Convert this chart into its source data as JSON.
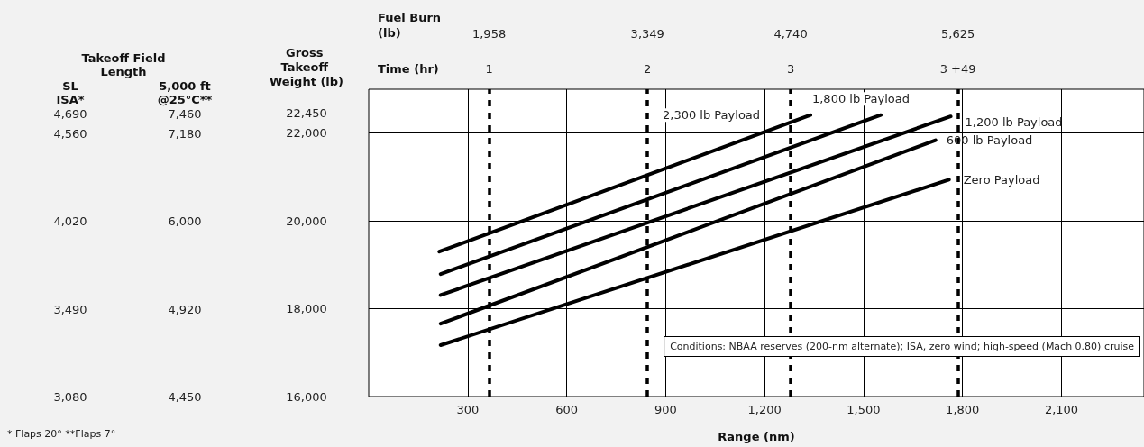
{
  "chart_data": [
    {
      "type": "other",
      "annotations": [
        "Takeoff Field Length",
        "SL ISA*",
        "5,000 ft @25°C**",
        "4,690",
        "7,460",
        "4,560",
        "7,180",
        "4,020",
        "6,000",
        "3,490",
        "4,920",
        "3,080",
        "4,450",
        "* Flaps 20°   **Flaps 7°"
      ]
    },
    {
      "type": "line",
      "xlabel": "Range (nm)",
      "ylabel": "Gross Takeoff Weight (lb)",
      "annotations": [
        "Fuel Burn (lb)",
        "1,958",
        "3,349",
        "4,740",
        "5,625",
        "Time (hr)",
        "1",
        "2",
        "3",
        "3 +49",
        "Conditions: NBAA reserves (200-nm alternate); ISA, zero wind; high-speed (Mach 0.80) cruise"
      ],
      "xlim": [
        0,
        2350
      ],
      "xticks": [
        300,
        600,
        900,
        {
          "value": 1200,
          "label": "1,200"
        },
        {
          "value": 1500,
          "label": "1,500"
        },
        {
          "value": 1800,
          "label": "1,800"
        },
        {
          "value": 2100,
          "label": "2,100"
        }
      ],
      "ylim": [
        16000,
        23000
      ],
      "yticks": [
        {
          "value": 16000,
          "label": "16,000"
        },
        {
          "value": 18000,
          "label": "18,000"
        },
        {
          "value": 20000,
          "label": "20,000"
        },
        {
          "value": 22000,
          "label": "22,000"
        },
        {
          "value": 22450,
          "label": "22,450"
        }
      ],
      "ref_lines": [
        {
          "axis": "x",
          "value": 365,
          "color": "#000000",
          "line_style": "dashed"
        },
        {
          "axis": "x",
          "value": 845,
          "color": "#000000",
          "line_style": "dashed"
        },
        {
          "axis": "x",
          "value": 1279,
          "color": "#000000",
          "line_style": "dashed"
        },
        {
          "axis": "x",
          "value": 1786,
          "color": "#000000",
          "line_style": "dashed"
        }
      ],
      "series": [
        {
          "name": "2,300 lb Payload",
          "color": "#000000",
          "x": [
            214,
            1339
          ],
          "values": [
            19300,
            22410
          ]
        },
        {
          "name": "1,800 lb Payload",
          "color": "#000000",
          "x": [
            218,
            1552
          ],
          "values": [
            18790,
            22410
          ]
        },
        {
          "name": "1,200 lb Payload",
          "color": "#000000",
          "x": [
            218,
            1764
          ],
          "values": [
            18310,
            22380
          ]
        },
        {
          "name": "600 lb Payload",
          "color": "#000000",
          "x": [
            218,
            1718
          ],
          "values": [
            17660,
            21840
          ]
        },
        {
          "name": "Zero Payload",
          "color": "#000000",
          "x": [
            218,
            1759
          ],
          "values": [
            17170,
            20940
          ]
        }
      ],
      "grid": true,
      "legend": false,
      "marker": "none",
      "line_style": "solid"
    }
  ]
}
